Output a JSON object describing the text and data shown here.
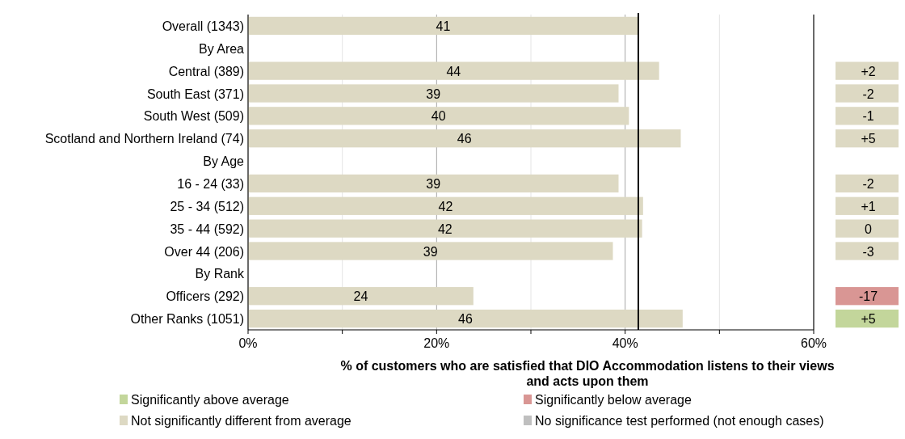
{
  "chart_data": [
    {
      "type": "bar",
      "orientation": "horizontal",
      "xlabel": "% of customers who are satisfied that DIO Accommodation listens to their views and acts upon them",
      "categories": [
        "Overall (1343)",
        "By Area",
        "Central (389)",
        "South East (371)",
        "South West (509)",
        "Scotland and Northern Ireland (74)",
        "By Age",
        "16 - 24 (33)",
        "25 - 34 (512)",
        "35 - 44 (592)",
        "Over 44 (206)",
        "By Rank",
        "Officers (292)",
        "Other Ranks (1051)"
      ],
      "series": [
        {
          "name": "Significantly above average",
          "color": "#c3d69b",
          "values": [
            null,
            null,
            null,
            null,
            null,
            null,
            null,
            null,
            null,
            null,
            null,
            null,
            null,
            null
          ]
        },
        {
          "name": "Significantly below average",
          "color": "#d99694",
          "values": [
            null,
            null,
            null,
            null,
            null,
            null,
            null,
            null,
            null,
            null,
            null,
            null,
            null,
            null
          ]
        },
        {
          "name": "Not significantly different from average",
          "color": "#ddd9c3",
          "values": [
            41.4,
            null,
            43.6,
            39.3,
            40.4,
            45.9,
            null,
            39.3,
            41.9,
            41.8,
            38.7,
            null,
            23.9,
            46.1
          ],
          "value_labels": [
            "41",
            null,
            "44",
            "39",
            "40",
            "46",
            null,
            "39",
            "42",
            "42",
            "39",
            null,
            "24",
            "46"
          ]
        },
        {
          "name": "No significance test performed (not enough cases)",
          "color": "#bfbfbf",
          "values": [
            null,
            null,
            null,
            null,
            null,
            null,
            null,
            null,
            null,
            null,
            null,
            null,
            null,
            null
          ]
        }
      ],
      "xlim": [
        0,
        60
      ],
      "xticks": [
        {
          "value": 0,
          "label": "0%"
        },
        {
          "value": 10,
          "label": null
        },
        {
          "value": 20,
          "label": "20%"
        },
        {
          "value": 30,
          "label": null
        },
        {
          "value": 40,
          "label": "40%"
        },
        {
          "value": 50,
          "label": null
        },
        {
          "value": 60,
          "label": "60%"
        }
      ],
      "grid": "x",
      "legend": "bottom",
      "ref_lines": [
        {
          "axis": "x",
          "value": 41.4,
          "color": "#000000"
        }
      ]
    },
    {
      "type": "other",
      "value_labels": [
        null,
        null,
        "+2",
        "-2",
        "-1",
        "+5",
        null,
        "-2",
        "+1",
        "0",
        "-3",
        null,
        "-17",
        "+5"
      ],
      "colors": [
        null,
        null,
        "#ddd9c3",
        "#ddd9c3",
        "#ddd9c3",
        "#ddd9c3",
        null,
        "#ddd9c3",
        "#ddd9c3",
        "#ddd9c3",
        "#ddd9c3",
        null,
        "#d99694",
        "#c3d69b"
      ]
    }
  ]
}
